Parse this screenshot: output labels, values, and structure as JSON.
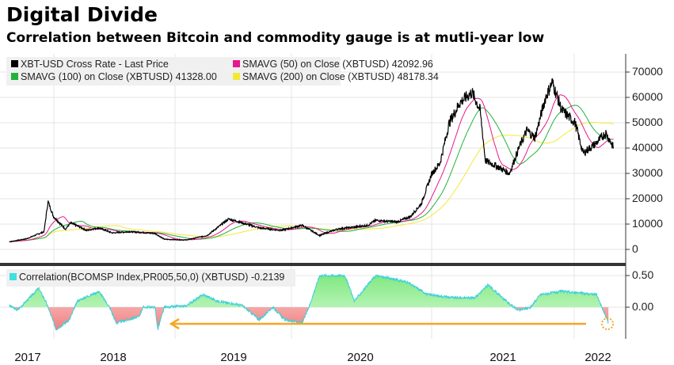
{
  "title": "Digital Divide",
  "subtitle": "Correlation between Bitcoin and commodity gauge is at mutli-year low",
  "chart_data": [
    {
      "type": "line",
      "legend": [
        {
          "name": "XBT-USD Cross Rate - Last Price",
          "color": "#000000",
          "value": ""
        },
        {
          "name": "SMAVG (50)  on Close (XBTUSD)",
          "color": "#e6198c",
          "value": "42092.96"
        },
        {
          "name": "SMAVG (100)  on Close (XBTUSD)",
          "color": "#22b33c",
          "value": "41328.00"
        },
        {
          "name": "SMAVG (200)  on Close (XBTUSD)",
          "color": "#f2e83a",
          "value": "48178.34"
        }
      ],
      "y_ticks": [
        "70000",
        "60000",
        "50000",
        "40000",
        "30000",
        "20000",
        "10000",
        "0"
      ],
      "ylim": [
        0,
        70000
      ],
      "xlim": [
        2017.6,
        2022.13
      ],
      "grid": true,
      "axis_side": "right",
      "price": [
        [
          2017.61,
          3000
        ],
        [
          2017.74,
          4200
        ],
        [
          2017.87,
          7000
        ],
        [
          2017.9,
          19000
        ],
        [
          2017.94,
          13000
        ],
        [
          2018.03,
          8000
        ],
        [
          2018.07,
          10500
        ],
        [
          2018.19,
          7500
        ],
        [
          2018.28,
          8500
        ],
        [
          2018.38,
          6500
        ],
        [
          2018.51,
          7000
        ],
        [
          2018.7,
          6300
        ],
        [
          2018.77,
          4000
        ],
        [
          2018.93,
          3700
        ],
        [
          2019.09,
          5500
        ],
        [
          2019.25,
          12000
        ],
        [
          2019.35,
          10500
        ],
        [
          2019.48,
          8500
        ],
        [
          2019.64,
          7500
        ],
        [
          2019.8,
          9500
        ],
        [
          2019.93,
          5500
        ],
        [
          2020.06,
          8000
        ],
        [
          2020.29,
          9500
        ],
        [
          2020.35,
          11500
        ],
        [
          2020.51,
          10800
        ],
        [
          2020.61,
          13000
        ],
        [
          2020.69,
          18000
        ],
        [
          2020.77,
          30000
        ],
        [
          2020.83,
          34000
        ],
        [
          2020.9,
          50000
        ],
        [
          2020.98,
          58000
        ],
        [
          2021.07,
          62000
        ],
        [
          2021.13,
          55000
        ],
        [
          2021.17,
          35000
        ],
        [
          2021.25,
          33000
        ],
        [
          2021.35,
          30000
        ],
        [
          2021.42,
          40000
        ],
        [
          2021.48,
          47000
        ],
        [
          2021.54,
          44000
        ],
        [
          2021.62,
          60000
        ],
        [
          2021.67,
          66000
        ],
        [
          2021.74,
          55000
        ],
        [
          2021.84,
          50000
        ],
        [
          2021.9,
          38000
        ],
        [
          2022.0,
          42000
        ],
        [
          2022.07,
          46000
        ],
        [
          2022.13,
          40000
        ]
      ]
    },
    {
      "type": "area",
      "legend": [
        {
          "name": "Correlation(BCOMSP Index,PR005,50,0) (XBTUSD)",
          "color": "#40e0e0",
          "value": "-0.2139"
        }
      ],
      "y_ticks": [
        "0.50",
        "0.00"
      ],
      "xlim": [
        2017.6,
        2022.13
      ],
      "positive_color": "#90ee90",
      "negative_color": "#f5a0a0",
      "correlation": [
        [
          2017.61,
          0.03
        ],
        [
          2017.67,
          -0.05
        ],
        [
          2017.83,
          0.3
        ],
        [
          2017.88,
          0.1
        ],
        [
          2017.9,
          0
        ],
        [
          2017.96,
          -0.35
        ],
        [
          2018.06,
          -0.2
        ],
        [
          2018.12,
          0.1
        ],
        [
          2018.28,
          0.25
        ],
        [
          2018.36,
          0.0
        ],
        [
          2018.41,
          -0.25
        ],
        [
          2018.58,
          -0.15
        ],
        [
          2018.61,
          0
        ],
        [
          2018.7,
          0
        ],
        [
          2018.72,
          -0.35
        ],
        [
          2018.77,
          0
        ],
        [
          2018.93,
          0.02
        ],
        [
          2019.06,
          0.2
        ],
        [
          2019.16,
          0.1
        ],
        [
          2019.35,
          0.03
        ],
        [
          2019.48,
          -0.2
        ],
        [
          2019.58,
          0
        ],
        [
          2019.67,
          -0.2
        ],
        [
          2019.8,
          -0.25
        ],
        [
          2019.85,
          0
        ],
        [
          2019.93,
          0.5
        ],
        [
          2020.12,
          0.5
        ],
        [
          2020.19,
          0.1
        ],
        [
          2020.35,
          0.5
        ],
        [
          2020.58,
          0.4
        ],
        [
          2020.74,
          0.2
        ],
        [
          2020.93,
          0.15
        ],
        [
          2021.09,
          0.15
        ],
        [
          2021.19,
          0.35
        ],
        [
          2021.35,
          0.05
        ],
        [
          2021.42,
          -0.05
        ],
        [
          2021.51,
          0.0
        ],
        [
          2021.58,
          0.2
        ],
        [
          2021.74,
          0.25
        ],
        [
          2022.0,
          0.2
        ],
        [
          2022.04,
          0
        ],
        [
          2022.09,
          -0.25
        ]
      ],
      "annotation": {
        "type": "arrow",
        "color": "#f5a623"
      }
    }
  ],
  "x_ticks": [
    "2017",
    "2018",
    "2019",
    "2020",
    "2021",
    "2022"
  ]
}
